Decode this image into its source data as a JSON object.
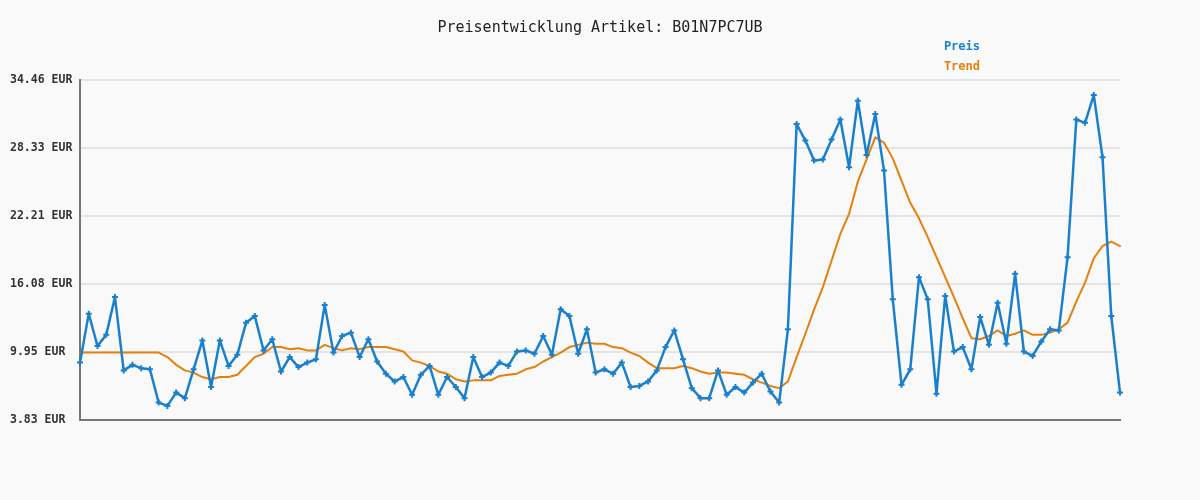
{
  "chart_data": {
    "type": "line",
    "title": "Preisentwicklung Artikel: B01N7PC7UB",
    "categories": [
      null,
      null,
      null,
      null,
      null,
      null,
      null,
      null,
      null,
      null,
      null,
      null,
      null,
      null,
      null,
      null,
      null,
      null,
      null,
      null,
      null,
      null,
      null,
      null,
      null,
      null,
      null,
      null,
      null,
      null,
      null,
      null,
      null,
      null,
      null,
      null,
      null,
      null,
      null,
      null,
      null,
      null,
      null,
      null,
      null,
      null,
      null,
      null,
      null,
      null,
      null,
      null,
      null,
      null,
      null,
      null,
      null,
      null,
      null,
      null,
      null,
      null,
      null,
      null,
      null,
      null,
      null,
      null,
      null,
      null,
      null,
      null,
      null,
      null,
      null,
      null,
      null,
      null,
      null,
      null,
      null,
      null,
      null,
      null,
      null,
      null,
      null,
      null,
      null,
      null,
      null,
      null,
      null,
      null,
      null,
      null,
      null,
      null,
      null,
      null,
      null,
      null,
      null,
      null,
      null,
      null,
      null,
      null,
      null,
      null,
      null,
      null,
      null,
      null,
      null,
      null,
      null,
      null,
      null,
      null
    ],
    "series": [
      {
        "name": "Preis",
        "color": "#1a80cc",
        "values": [
          9.0,
          13.4,
          10.5,
          11.5,
          14.9,
          8.3,
          8.8,
          8.5,
          8.4,
          5.4,
          5.1,
          6.3,
          5.8,
          8.4,
          11.0,
          6.8,
          11.0,
          8.7,
          9.7,
          12.6,
          13.2,
          10.1,
          11.1,
          8.2,
          9.5,
          8.6,
          9.0,
          9.3,
          14.2,
          9.9,
          11.4,
          11.7,
          9.5,
          11.1,
          9.1,
          8.0,
          7.3,
          7.7,
          6.1,
          7.9,
          8.7,
          6.1,
          7.7,
          6.8,
          5.8,
          9.5,
          7.7,
          8.1,
          9.0,
          8.7,
          10.0,
          10.1,
          9.8,
          11.4,
          9.7,
          13.8,
          13.2,
          9.8,
          12.0,
          8.1,
          8.4,
          8.0,
          9.0,
          6.8,
          6.9,
          7.3,
          8.3,
          10.4,
          11.9,
          9.3,
          6.7,
          5.8,
          5.8,
          8.3,
          6.1,
          6.8,
          6.3,
          7.2,
          8.0,
          6.4,
          5.4,
          12.0,
          30.5,
          29.0,
          27.2,
          27.3,
          29.1,
          30.9,
          26.6,
          32.6,
          27.7,
          31.4,
          26.3,
          14.7,
          7.0,
          8.4,
          16.7,
          14.7,
          6.2,
          15.0,
          10.0,
          10.4,
          8.4,
          13.1,
          10.6,
          14.4,
          10.7,
          17.0,
          10.0,
          9.6,
          10.9,
          12.0,
          11.9,
          18.5,
          30.9,
          30.6,
          33.1,
          27.5,
          13.2,
          6.3
        ]
      },
      {
        "name": "Trend",
        "color": "#e5800e",
        "marker": "none",
        "values": [
          9.9,
          9.9,
          9.9,
          9.9,
          9.9,
          9.9,
          9.9,
          9.9,
          9.9,
          9.9,
          9.5,
          8.8,
          8.3,
          8.1,
          7.7,
          7.5,
          7.7,
          7.7,
          7.9,
          8.7,
          9.5,
          9.8,
          10.4,
          10.4,
          10.2,
          10.3,
          10.1,
          10.1,
          10.6,
          10.3,
          10.1,
          10.3,
          10.2,
          10.4,
          10.4,
          10.4,
          10.2,
          10.0,
          9.2,
          9.0,
          8.7,
          8.2,
          8.0,
          7.5,
          7.3,
          7.4,
          7.4,
          7.4,
          7.8,
          7.9,
          8.0,
          8.4,
          8.6,
          9.1,
          9.5,
          9.9,
          10.4,
          10.6,
          10.8,
          10.7,
          10.7,
          10.4,
          10.3,
          9.9,
          9.6,
          9.0,
          8.5,
          8.5,
          8.5,
          8.7,
          8.5,
          8.2,
          8.0,
          8.1,
          8.1,
          8.0,
          7.9,
          7.5,
          7.2,
          6.9,
          6.7,
          7.3,
          9.5,
          11.6,
          13.8,
          15.8,
          18.2,
          20.6,
          22.4,
          25.3,
          27.3,
          29.3,
          28.8,
          27.4,
          25.4,
          23.4,
          22.0,
          20.3,
          18.5,
          16.7,
          14.9,
          13.0,
          11.2,
          11.1,
          11.4,
          11.9,
          11.4,
          11.6,
          11.9,
          11.5,
          11.5,
          11.7,
          12.0,
          12.6,
          14.5,
          16.2,
          18.4,
          19.5,
          19.9,
          19.5
        ]
      }
    ],
    "ylim": [
      3.83,
      34.46
    ],
    "yticks": [
      {
        "value": 3.83,
        "label": "3.83 EUR"
      },
      {
        "value": 9.95,
        "label": "9.95 EUR"
      },
      {
        "value": 16.08,
        "label": "16.08 EUR"
      },
      {
        "value": 22.21,
        "label": "22.21 EUR"
      },
      {
        "value": 28.33,
        "label": "28.33 EUR"
      },
      {
        "value": 34.46,
        "label": "34.46 EUR"
      }
    ],
    "grid": "y",
    "legend": "top right",
    "marker": "cross"
  }
}
